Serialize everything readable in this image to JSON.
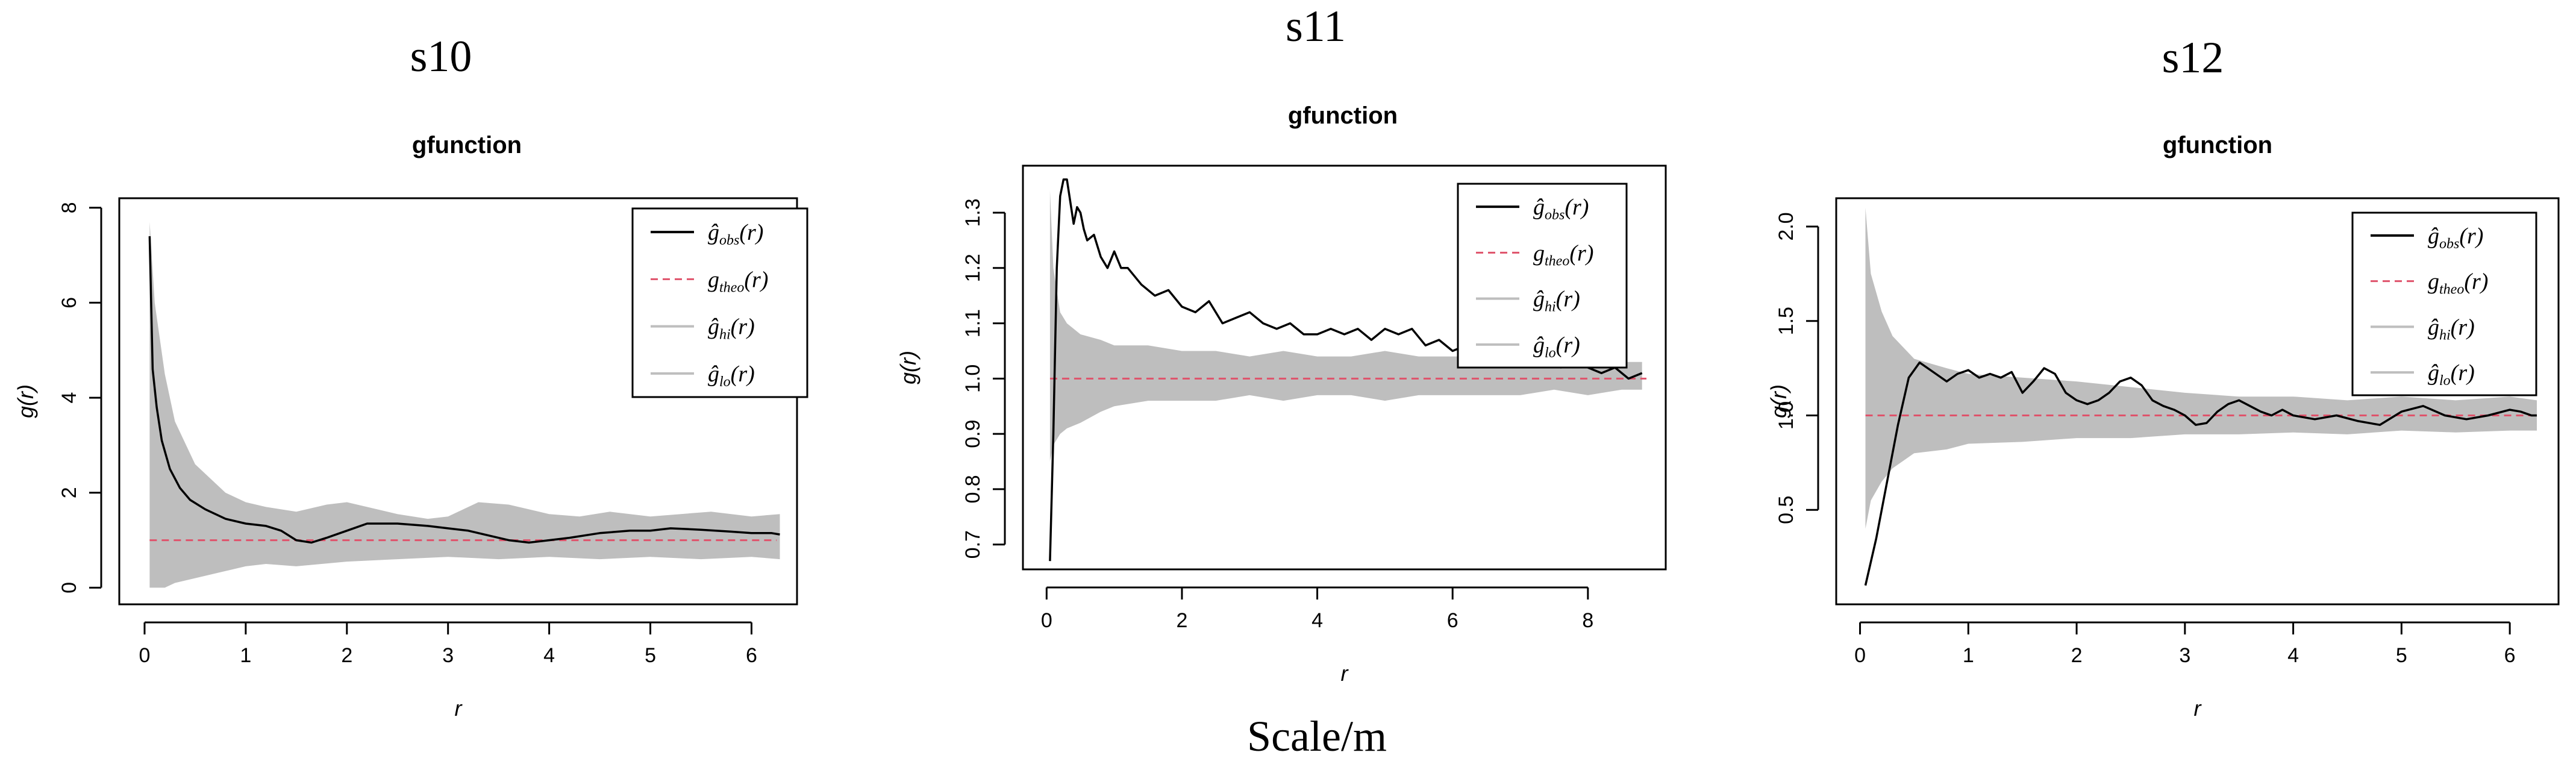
{
  "figure": {
    "x_caption": "Scale/m"
  },
  "colors": {
    "band": "#bebebe",
    "obs": "#000000",
    "theo": "#df536b",
    "frame": "#000000"
  },
  "chart_data": [
    {
      "type": "line",
      "panel_title": "s10",
      "title": "gfunction",
      "xlabel": "r",
      "ylabel": "g(r)",
      "xlim": [
        -0.25,
        6.45
      ],
      "ylim": [
        -0.35,
        8.2
      ],
      "xticks": [
        0,
        1,
        2,
        3,
        4,
        5,
        6
      ],
      "yticks": [
        0,
        2,
        4,
        6,
        8
      ],
      "legend": {
        "position": "top-right",
        "entries": [
          {
            "pre": "ĝ",
            "sub": "obs",
            "post": "(r)",
            "style": "obs"
          },
          {
            "pre": "g",
            "sub": "theo",
            "post": "(r)",
            "style": "theo"
          },
          {
            "pre": "ĝ",
            "sub": "hi",
            "post": "(r)",
            "style": "band"
          },
          {
            "pre": "ĝ",
            "sub": "lo",
            "post": "(r)",
            "style": "band"
          }
        ]
      },
      "theo": 1.0,
      "series": [
        {
          "name": "obs",
          "x": [
            0.05,
            0.08,
            0.12,
            0.17,
            0.25,
            0.35,
            0.45,
            0.6,
            0.8,
            1.0,
            1.2,
            1.35,
            1.5,
            1.65,
            1.8,
            2.0,
            2.2,
            2.5,
            2.8,
            3.0,
            3.2,
            3.4,
            3.6,
            3.8,
            4.0,
            4.2,
            4.5,
            4.8,
            5.0,
            5.2,
            5.5,
            5.8,
            6.0,
            6.2,
            6.28
          ],
          "values": [
            7.4,
            4.6,
            3.8,
            3.1,
            2.5,
            2.1,
            1.85,
            1.65,
            1.45,
            1.35,
            1.3,
            1.2,
            1.0,
            0.95,
            1.05,
            1.2,
            1.35,
            1.35,
            1.3,
            1.25,
            1.2,
            1.1,
            1.0,
            0.95,
            1.0,
            1.05,
            1.15,
            1.2,
            1.2,
            1.25,
            1.22,
            1.18,
            1.15,
            1.15,
            1.12
          ]
        },
        {
          "name": "hi",
          "x": [
            0.05,
            0.1,
            0.2,
            0.3,
            0.5,
            0.8,
            1.0,
            1.2,
            1.5,
            1.8,
            2.0,
            2.2,
            2.5,
            2.8,
            3.0,
            3.3,
            3.6,
            4.0,
            4.3,
            4.6,
            5.0,
            5.3,
            5.6,
            6.0,
            6.28
          ],
          "values": [
            7.7,
            6.0,
            4.5,
            3.5,
            2.6,
            2.0,
            1.8,
            1.7,
            1.6,
            1.75,
            1.8,
            1.7,
            1.55,
            1.45,
            1.5,
            1.8,
            1.75,
            1.55,
            1.5,
            1.6,
            1.5,
            1.55,
            1.6,
            1.5,
            1.55
          ]
        },
        {
          "name": "lo",
          "x": [
            0.05,
            0.2,
            0.3,
            0.5,
            0.8,
            1.0,
            1.2,
            1.5,
            2.0,
            2.5,
            3.0,
            3.5,
            4.0,
            4.5,
            5.0,
            5.5,
            6.0,
            6.28
          ],
          "values": [
            0.0,
            0.0,
            0.1,
            0.2,
            0.35,
            0.45,
            0.5,
            0.45,
            0.55,
            0.6,
            0.65,
            0.6,
            0.65,
            0.6,
            0.65,
            0.6,
            0.65,
            0.6
          ]
        }
      ]
    },
    {
      "type": "line",
      "panel_title": "s11",
      "title": "gfunction",
      "xlabel": "r",
      "ylabel": "g(r)",
      "xlim": [
        -0.35,
        9.15
      ],
      "ylim": [
        0.655,
        1.385
      ],
      "xticks": [
        0,
        2,
        4,
        6,
        8
      ],
      "yticks": [
        0.7,
        0.8,
        0.9,
        1.0,
        1.1,
        1.2,
        1.3
      ],
      "ytick_labels": [
        "0.7",
        "0.8",
        "0.9",
        "1.0",
        "1.1",
        "1.2",
        "1.3"
      ],
      "legend": {
        "position": "top-right",
        "entries": [
          {
            "pre": "ĝ",
            "sub": "obs",
            "post": "(r)",
            "style": "obs"
          },
          {
            "pre": "g",
            "sub": "theo",
            "post": "(r)",
            "style": "theo"
          },
          {
            "pre": "ĝ",
            "sub": "hi",
            "post": "(r)",
            "style": "band"
          },
          {
            "pre": "ĝ",
            "sub": "lo",
            "post": "(r)",
            "style": "band"
          }
        ]
      },
      "theo": 1.0,
      "series": [
        {
          "name": "obs",
          "x": [
            0.05,
            0.1,
            0.15,
            0.2,
            0.25,
            0.3,
            0.35,
            0.4,
            0.45,
            0.5,
            0.55,
            0.6,
            0.7,
            0.8,
            0.9,
            1.0,
            1.1,
            1.2,
            1.4,
            1.6,
            1.8,
            2.0,
            2.2,
            2.4,
            2.6,
            2.8,
            3.0,
            3.2,
            3.4,
            3.6,
            3.8,
            4.0,
            4.2,
            4.4,
            4.6,
            4.8,
            5.0,
            5.2,
            5.4,
            5.6,
            5.8,
            6.0,
            6.2,
            6.4,
            6.6,
            6.8,
            7.0,
            7.2,
            7.4,
            7.6,
            7.8,
            8.0,
            8.2,
            8.4,
            8.6,
            8.8
          ],
          "values": [
            0.67,
            0.9,
            1.2,
            1.33,
            1.36,
            1.36,
            1.32,
            1.28,
            1.31,
            1.3,
            1.27,
            1.25,
            1.26,
            1.22,
            1.2,
            1.23,
            1.2,
            1.2,
            1.17,
            1.15,
            1.16,
            1.13,
            1.12,
            1.14,
            1.1,
            1.11,
            1.12,
            1.1,
            1.09,
            1.1,
            1.08,
            1.08,
            1.09,
            1.08,
            1.09,
            1.07,
            1.09,
            1.08,
            1.09,
            1.06,
            1.07,
            1.05,
            1.06,
            1.04,
            1.06,
            1.03,
            1.05,
            1.03,
            1.04,
            1.02,
            1.03,
            1.02,
            1.01,
            1.02,
            1.0,
            1.01
          ]
        },
        {
          "name": "hi",
          "x": [
            0.05,
            0.1,
            0.2,
            0.3,
            0.5,
            0.8,
            1.0,
            1.5,
            2.0,
            2.5,
            3.0,
            3.5,
            4.0,
            4.5,
            5.0,
            5.5,
            6.0,
            6.5,
            7.0,
            7.5,
            8.0,
            8.5,
            8.8
          ],
          "values": [
            1.34,
            1.2,
            1.12,
            1.1,
            1.08,
            1.07,
            1.06,
            1.06,
            1.05,
            1.05,
            1.04,
            1.05,
            1.04,
            1.04,
            1.05,
            1.04,
            1.04,
            1.04,
            1.04,
            1.03,
            1.04,
            1.03,
            1.03
          ]
        },
        {
          "name": "lo",
          "x": [
            0.05,
            0.1,
            0.2,
            0.3,
            0.5,
            0.8,
            1.0,
            1.5,
            2.0,
            2.5,
            3.0,
            3.5,
            4.0,
            4.5,
            5.0,
            5.5,
            6.0,
            6.5,
            7.0,
            7.5,
            8.0,
            8.5,
            8.8
          ],
          "values": [
            0.85,
            0.88,
            0.9,
            0.91,
            0.92,
            0.94,
            0.95,
            0.96,
            0.96,
            0.96,
            0.97,
            0.96,
            0.97,
            0.97,
            0.96,
            0.97,
            0.97,
            0.97,
            0.97,
            0.98,
            0.97,
            0.98,
            0.98
          ]
        }
      ]
    },
    {
      "type": "line",
      "panel_title": "s12",
      "title": "gfunction",
      "xlabel": "r",
      "ylabel": "g(r)",
      "xlim": [
        -0.22,
        6.45
      ],
      "ylim": [
        0.0,
        2.15
      ],
      "xticks": [
        0,
        1,
        2,
        3,
        4,
        5,
        6
      ],
      "yticks": [
        0.5,
        1.0,
        1.5,
        2.0
      ],
      "ytick_labels": [
        "0.5",
        "1.0",
        "1.5",
        "2.0"
      ],
      "legend": {
        "position": "top-right",
        "entries": [
          {
            "pre": "ĝ",
            "sub": "obs",
            "post": "(r)",
            "style": "obs"
          },
          {
            "pre": "g",
            "sub": "theo",
            "post": "(r)",
            "style": "theo"
          },
          {
            "pre": "ĝ",
            "sub": "hi",
            "post": "(r)",
            "style": "band"
          },
          {
            "pre": "ĝ",
            "sub": "lo",
            "post": "(r)",
            "style": "band"
          }
        ]
      },
      "theo": 1.0,
      "series": [
        {
          "name": "obs",
          "x": [
            0.05,
            0.15,
            0.25,
            0.35,
            0.45,
            0.55,
            0.7,
            0.8,
            0.9,
            1.0,
            1.1,
            1.2,
            1.3,
            1.4,
            1.5,
            1.6,
            1.7,
            1.8,
            1.9,
            2.0,
            2.1,
            2.2,
            2.3,
            2.4,
            2.5,
            2.6,
            2.7,
            2.8,
            2.9,
            3.0,
            3.1,
            3.2,
            3.3,
            3.4,
            3.5,
            3.6,
            3.7,
            3.8,
            3.9,
            4.0,
            4.2,
            4.4,
            4.6,
            4.8,
            5.0,
            5.2,
            5.4,
            5.6,
            5.8,
            6.0,
            6.1,
            6.2,
            6.25
          ],
          "values": [
            0.1,
            0.35,
            0.65,
            0.95,
            1.2,
            1.28,
            1.22,
            1.18,
            1.22,
            1.24,
            1.2,
            1.22,
            1.2,
            1.23,
            1.12,
            1.18,
            1.25,
            1.22,
            1.12,
            1.08,
            1.06,
            1.08,
            1.12,
            1.18,
            1.2,
            1.16,
            1.08,
            1.05,
            1.03,
            1.0,
            0.95,
            0.96,
            1.02,
            1.06,
            1.08,
            1.05,
            1.02,
            1.0,
            1.03,
            1.0,
            0.98,
            1.0,
            0.97,
            0.95,
            1.02,
            1.05,
            1.0,
            0.98,
            1.0,
            1.03,
            1.02,
            1.0,
            1.0
          ]
        },
        {
          "name": "hi",
          "x": [
            0.05,
            0.1,
            0.2,
            0.3,
            0.5,
            0.8,
            1.0,
            1.5,
            2.0,
            2.5,
            3.0,
            3.5,
            4.0,
            4.5,
            5.0,
            5.5,
            6.0,
            6.25
          ],
          "values": [
            2.1,
            1.75,
            1.55,
            1.42,
            1.3,
            1.25,
            1.22,
            1.2,
            1.18,
            1.15,
            1.12,
            1.1,
            1.1,
            1.08,
            1.1,
            1.08,
            1.1,
            1.08
          ]
        },
        {
          "name": "lo",
          "x": [
            0.05,
            0.1,
            0.2,
            0.3,
            0.5,
            0.8,
            1.0,
            1.5,
            2.0,
            2.5,
            3.0,
            3.5,
            4.0,
            4.5,
            5.0,
            5.5,
            6.0,
            6.25
          ],
          "values": [
            0.4,
            0.55,
            0.65,
            0.72,
            0.8,
            0.82,
            0.85,
            0.86,
            0.88,
            0.88,
            0.9,
            0.9,
            0.91,
            0.9,
            0.92,
            0.91,
            0.92,
            0.92
          ]
        }
      ]
    }
  ]
}
